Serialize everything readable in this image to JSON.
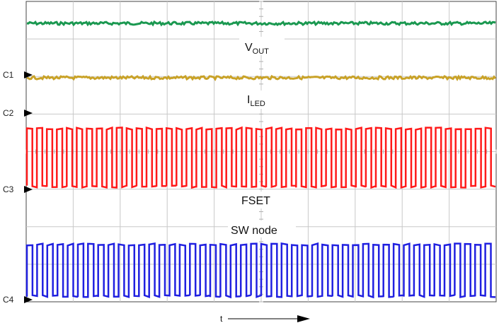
{
  "chart_data": {
    "type": "line",
    "title": "",
    "xlabel": "t",
    "ylabel": "",
    "grid": true,
    "channels": [
      {
        "marker": "C1",
        "name": "V",
        "subscript": "OUT",
        "color": "#1a9850",
        "waveform": "dc"
      },
      {
        "marker": "C2",
        "name": "I",
        "subscript": "LED",
        "color": "#c9a227",
        "waveform": "dc"
      },
      {
        "marker": "C3",
        "name": "FSET",
        "subscript": "",
        "color": "#ff1a1a",
        "waveform": "square",
        "cycles": 47
      },
      {
        "marker": "C4",
        "name": "SW node",
        "subscript": "",
        "color": "#2020e0",
        "waveform": "square",
        "cycles": 46
      }
    ]
  }
}
